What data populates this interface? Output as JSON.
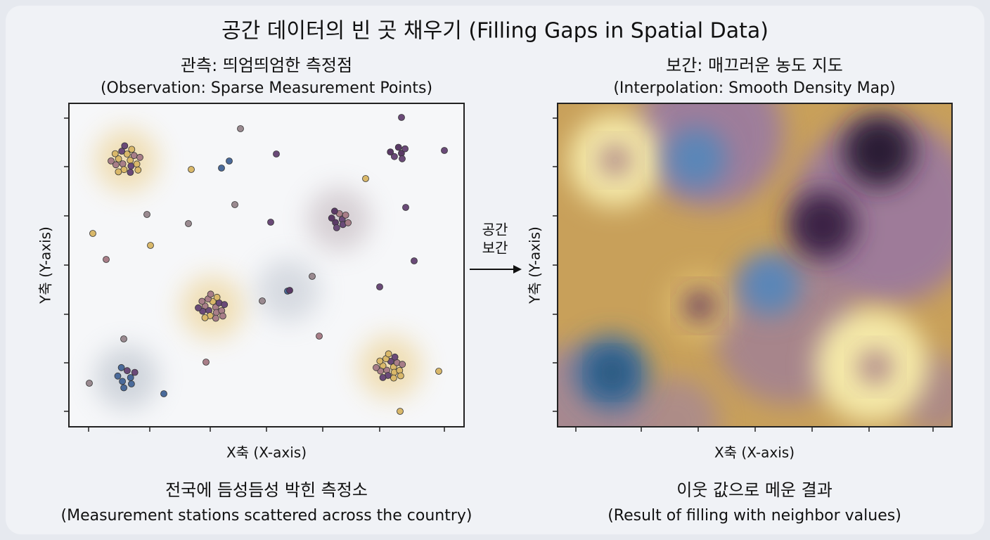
{
  "title": "공간 데이터의 빈 곳 채우기 (Filling Gaps in Spatial Data)",
  "left": {
    "heading": "관측: 띄엄띄엄한 측정점",
    "subheading": "(Observation: Sparse Measurement Points)",
    "y_label": "Y축 (Y-axis)",
    "x_label": "X축 (X-axis)",
    "caption": "전국에 듬성듬성 박힌 측정소",
    "caption_sub": "(Measurement stations scattered across the country)"
  },
  "arrow": {
    "label": [
      "공간",
      "보간"
    ]
  },
  "right": {
    "heading": "보간: 매끄러운 농도 지도",
    "subheading": "(Interpolation: Smooth Density Map)",
    "y_label": "Y축 (Y-axis)",
    "x_label": "X축 (X-axis)",
    "caption": "이웃 값으로 메운 결과",
    "caption_sub": "(Result of filling with neighbor values)"
  }
}
